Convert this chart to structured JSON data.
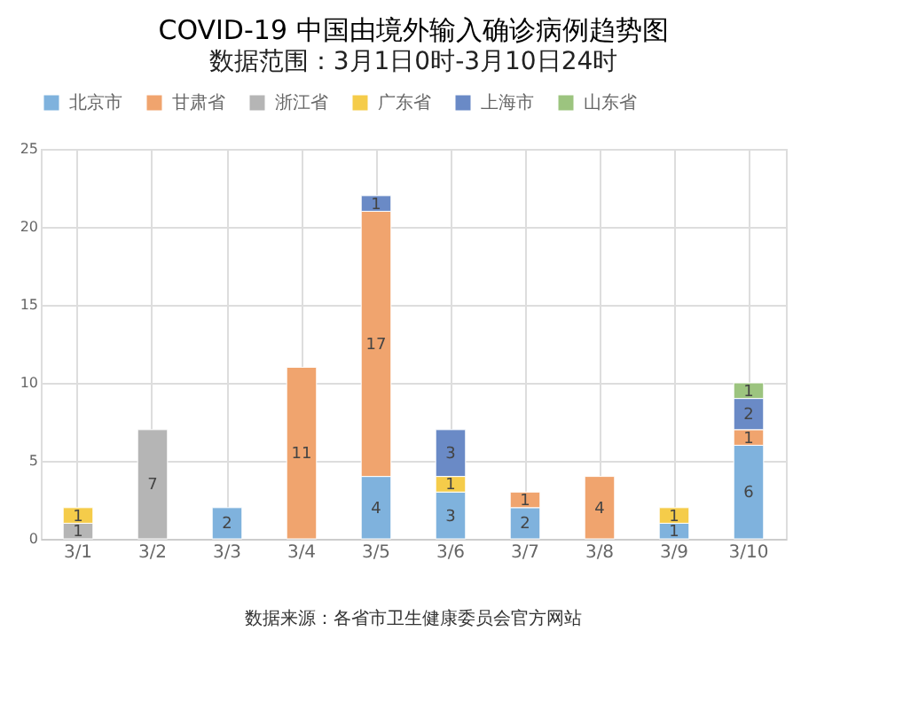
{
  "chart_data": {
    "type": "bar",
    "title": "COVID-19 中国由境外输入确诊病例趋势图",
    "subtitle": "数据范围：3月1日0时-3月10日24时",
    "categories": [
      "3/1",
      "3/2",
      "3/3",
      "3/4",
      "3/5",
      "3/6",
      "3/7",
      "3/8",
      "3/9",
      "3/10"
    ],
    "series": [
      {
        "name": "北京市",
        "color": "#7fb2dd",
        "values": [
          null,
          null,
          2,
          null,
          4,
          3,
          2,
          null,
          1,
          6
        ]
      },
      {
        "name": "甘肃省",
        "color": "#f0a46e",
        "values": [
          null,
          null,
          null,
          11,
          17,
          null,
          1,
          4,
          null,
          1
        ]
      },
      {
        "name": "浙江省",
        "color": "#b5b5b5",
        "values": [
          1,
          7,
          null,
          null,
          null,
          null,
          null,
          null,
          null,
          null
        ]
      },
      {
        "name": "广东省",
        "color": "#f5cc4a",
        "values": [
          1,
          null,
          null,
          null,
          null,
          1,
          null,
          null,
          1,
          null
        ]
      },
      {
        "name": "上海市",
        "color": "#6a8ac6",
        "values": [
          null,
          null,
          null,
          null,
          1,
          3,
          null,
          null,
          null,
          2
        ]
      },
      {
        "name": "山东省",
        "color": "#9cc47f",
        "values": [
          null,
          null,
          null,
          null,
          null,
          null,
          null,
          null,
          null,
          1
        ]
      }
    ],
    "stacked": true,
    "ylim": [
      0,
      25
    ],
    "yticks": [
      0,
      5,
      10,
      15,
      20,
      25
    ],
    "grid": true,
    "legend": "top",
    "data_labels": true,
    "annotations": [
      "数据来源：各省市卫生健康委员会官方网站"
    ]
  }
}
